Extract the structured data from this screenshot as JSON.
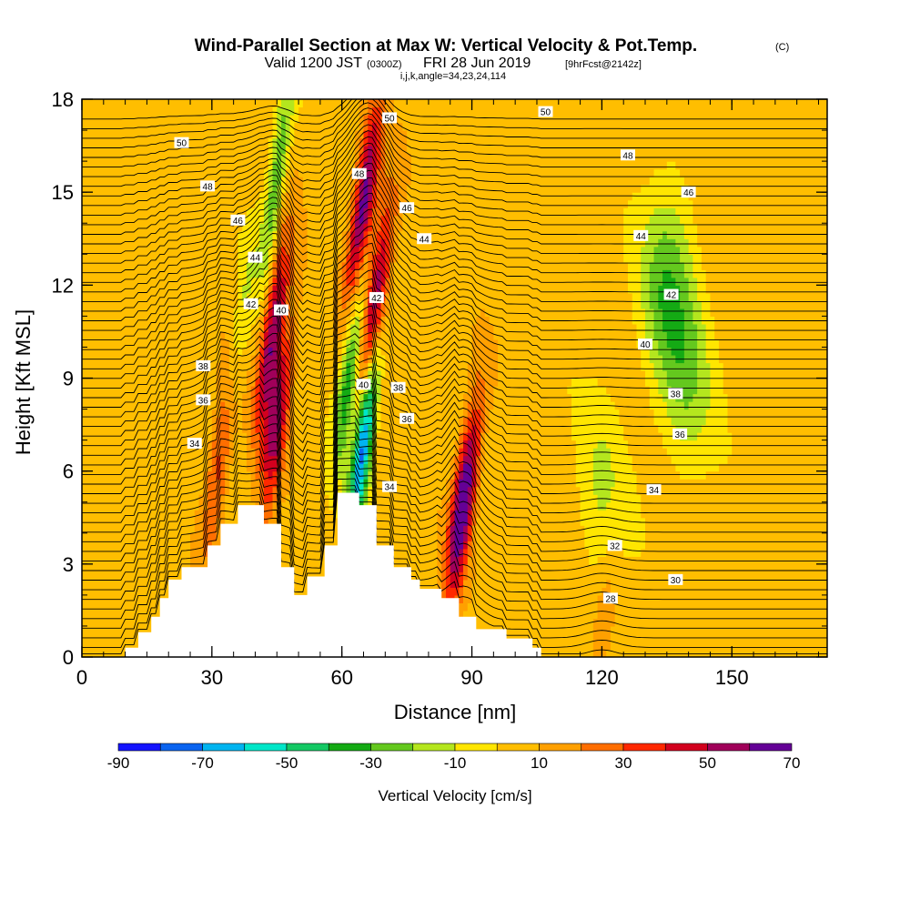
{
  "header": {
    "title": "Wind-Parallel Section at Max W: Vertical Velocity & Pot.Temp.",
    "copyright_mark": "(C)",
    "valid_time": "Valid 1200 JST",
    "utc_time": "(0300Z)",
    "date": "FRI 28 Jun 2019",
    "forecast": "[9hrFcst@2142z]",
    "indices": "i,j,k,angle=34,23,24,114"
  },
  "colors": {
    "terrain": "#ffffff",
    "palette": [
      "#1414ff",
      "#0a64f0",
      "#00b4f0",
      "#00e6c8",
      "#14c864",
      "#14aa14",
      "#64c81e",
      "#b4e61e",
      "#ffe600",
      "#ffbe00",
      "#ffa000",
      "#ff6e00",
      "#ff2800",
      "#d2001e",
      "#a0005a",
      "#640096"
    ]
  },
  "chart_data": {
    "type": "contour",
    "xlabel": "Distance [nm]",
    "ylabel": "Height [Kft MSL]",
    "xlim": [
      0,
      172
    ],
    "ylim": [
      0,
      18
    ],
    "xticks": [
      0,
      30,
      60,
      90,
      120,
      150
    ],
    "yticks": [
      0,
      3,
      6,
      9,
      12,
      15,
      18
    ],
    "shaded_field": "Vertical Velocity",
    "contour_field": "Potential Temperature",
    "colorbar": {
      "title": "Vertical Velocity [cm/s]",
      "bounds": [
        -90,
        -80,
        -70,
        -60,
        -50,
        -40,
        -30,
        -20,
        -10,
        0,
        10,
        20,
        30,
        40,
        50,
        60,
        70
      ],
      "tick_labels": [
        "-90",
        "-70",
        "-50",
        "-30",
        "-10",
        "10",
        "30",
        "50",
        "70"
      ],
      "tick_values": [
        -90,
        -70,
        -50,
        -30,
        -10,
        10,
        30,
        50,
        70
      ]
    },
    "terrain_profile": [
      [
        10,
        0.3
      ],
      [
        13,
        0.8
      ],
      [
        16,
        1.3
      ],
      [
        18,
        1.9
      ],
      [
        20,
        2.5
      ],
      [
        23,
        2.9
      ],
      [
        29,
        3.6
      ],
      [
        32,
        4.3
      ],
      [
        36,
        4.9
      ],
      [
        42,
        4.3
      ],
      [
        46,
        2.9
      ],
      [
        49,
        2.0
      ],
      [
        52,
        2.6
      ],
      [
        56,
        3.6
      ],
      [
        59,
        5.3
      ],
      [
        64,
        4.9
      ],
      [
        68,
        3.6
      ],
      [
        72,
        2.9
      ],
      [
        76,
        2.5
      ],
      [
        78,
        2.2
      ],
      [
        83,
        1.9
      ],
      [
        87,
        1.3
      ],
      [
        91,
        0.9
      ],
      [
        98,
        0.6
      ],
      [
        104,
        0.3
      ],
      [
        106,
        0
      ]
    ],
    "updrafts": [
      {
        "x": 32,
        "z": 6.5,
        "w": 35
      },
      {
        "x": 44,
        "z": 10.5,
        "w": 55
      },
      {
        "x": 45,
        "z": 7.5,
        "w": 45
      },
      {
        "x": 65,
        "z": 14.5,
        "w": 65
      },
      {
        "x": 68,
        "z": 11.5,
        "w": 60
      },
      {
        "x": 88,
        "z": 5.0,
        "w": 70
      },
      {
        "x": 120,
        "z": 1.0,
        "w": 12
      }
    ],
    "downdrafts": [
      {
        "x": 36,
        "z": 10.0,
        "w": -20
      },
      {
        "x": 45,
        "z": 15.5,
        "w": -35
      },
      {
        "x": 62,
        "z": 9.5,
        "w": -45
      },
      {
        "x": 65,
        "z": 7.0,
        "w": -80
      },
      {
        "x": 135,
        "z": 12.0,
        "w": -30
      },
      {
        "x": 140,
        "z": 9.0,
        "w": -20
      },
      {
        "x": 120,
        "z": 5.0,
        "w": -15
      }
    ],
    "isentropes": [
      {
        "theta": 28,
        "label": "28",
        "label_x": 122,
        "label_z": 1.9
      },
      {
        "theta": 30,
        "label": "30",
        "label_x": 137,
        "label_z": 2.5
      },
      {
        "theta": 32,
        "label": "32",
        "label_x": 123,
        "label_z": 3.6
      },
      {
        "theta": 34,
        "label": "34",
        "label_x": 26,
        "label_z": 6.9
      },
      {
        "theta": 34,
        "label": "34",
        "label_x": 71,
        "label_z": 5.5
      },
      {
        "theta": 34,
        "label": "34",
        "label_x": 132,
        "label_z": 5.4
      },
      {
        "theta": 36,
        "label": "36",
        "label_x": 28,
        "label_z": 8.3
      },
      {
        "theta": 36,
        "label": "36",
        "label_x": 75,
        "label_z": 7.7
      },
      {
        "theta": 36,
        "label": "36",
        "label_x": 138,
        "label_z": 7.2
      },
      {
        "theta": 38,
        "label": "38",
        "label_x": 28,
        "label_z": 9.4
      },
      {
        "theta": 38,
        "label": "38",
        "label_x": 73,
        "label_z": 8.7
      },
      {
        "theta": 38,
        "label": "38",
        "label_x": 137,
        "label_z": 8.5
      },
      {
        "theta": 40,
        "label": "40",
        "label_x": 46,
        "label_z": 11.2
      },
      {
        "theta": 40,
        "label": "40",
        "label_x": 65,
        "label_z": 8.8
      },
      {
        "theta": 40,
        "label": "40",
        "label_x": 130,
        "label_z": 10.1
      },
      {
        "theta": 42,
        "label": "42",
        "label_x": 39,
        "label_z": 11.4
      },
      {
        "theta": 42,
        "label": "42",
        "label_x": 68,
        "label_z": 11.6
      },
      {
        "theta": 42,
        "label": "42",
        "label_x": 136,
        "label_z": 11.7
      },
      {
        "theta": 44,
        "label": "44",
        "label_x": 40,
        "label_z": 12.9
      },
      {
        "theta": 44,
        "label": "44",
        "label_x": 79,
        "label_z": 13.5
      },
      {
        "theta": 44,
        "label": "44",
        "label_x": 129,
        "label_z": 13.6
      },
      {
        "theta": 46,
        "label": "46",
        "label_x": 36,
        "label_z": 14.1
      },
      {
        "theta": 46,
        "label": "46",
        "label_x": 75,
        "label_z": 14.5
      },
      {
        "theta": 46,
        "label": "46",
        "label_x": 140,
        "label_z": 15.0
      },
      {
        "theta": 48,
        "label": "48",
        "label_x": 29,
        "label_z": 15.2
      },
      {
        "theta": 48,
        "label": "48",
        "label_x": 64,
        "label_z": 15.6
      },
      {
        "theta": 48,
        "label": "48",
        "label_x": 126,
        "label_z": 16.2
      },
      {
        "theta": 50,
        "label": "50",
        "label_x": 23,
        "label_z": 16.6
      },
      {
        "theta": 50,
        "label": "50",
        "label_x": 71,
        "label_z": 17.4
      },
      {
        "theta": 50,
        "label": "50",
        "label_x": 107,
        "label_z": 17.6
      }
    ]
  }
}
